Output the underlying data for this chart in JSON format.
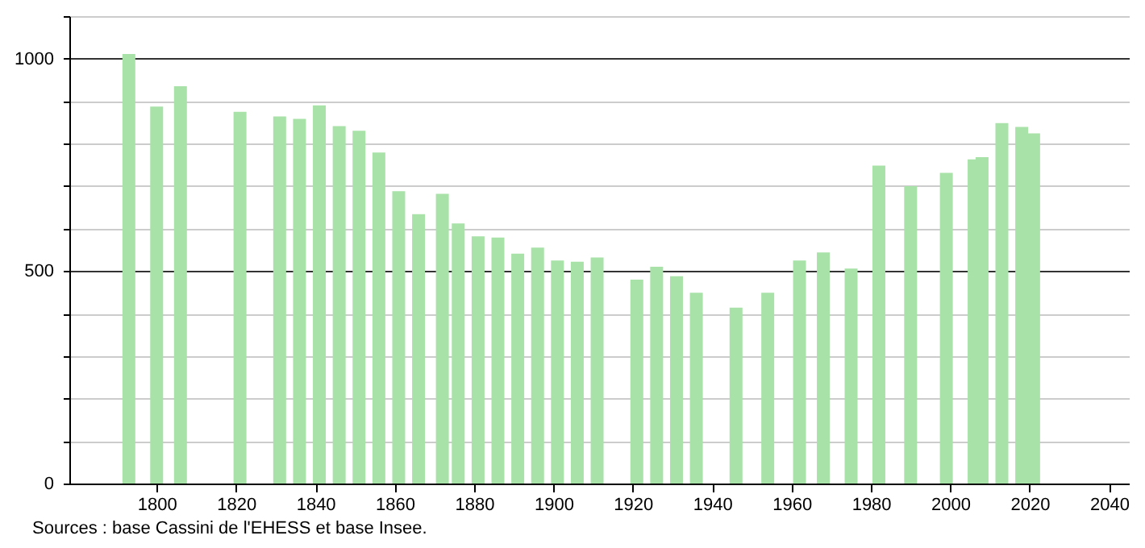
{
  "chart_data": {
    "type": "bar",
    "x": [
      1793,
      1800,
      1806,
      1821,
      1831,
      1836,
      1841,
      1846,
      1851,
      1856,
      1861,
      1866,
      1872,
      1876,
      1881,
      1886,
      1891,
      1896,
      1901,
      1906,
      1911,
      1921,
      1926,
      1931,
      1936,
      1946,
      1954,
      1962,
      1968,
      1975,
      1982,
      1990,
      1999,
      2006,
      2008,
      2013,
      2018,
      2021
    ],
    "values": [
      1011,
      887,
      935,
      875,
      864,
      858,
      890,
      841,
      830,
      779,
      688,
      634,
      682,
      612,
      582,
      579,
      541,
      555,
      525,
      522,
      532,
      480,
      510,
      488,
      449,
      414,
      449,
      525,
      544,
      506,
      748,
      700,
      731,
      763,
      768,
      848,
      839,
      824
    ],
    "color": "#a8e2a8",
    "xlim": [
      1778,
      2045
    ],
    "xticks": [
      1800,
      1820,
      1840,
      1860,
      1880,
      1900,
      1920,
      1940,
      1960,
      1980,
      2000,
      2020,
      2040
    ],
    "ylim": [
      0,
      1100
    ],
    "yticks": [
      0,
      {
        "value": 100,
        "label": null
      },
      {
        "value": 200,
        "label": null
      },
      {
        "value": 300,
        "label": null
      },
      {
        "value": 400,
        "label": null
      },
      500,
      {
        "value": 600,
        "label": null
      },
      {
        "value": 700,
        "label": null
      },
      {
        "value": 800,
        "label": null
      },
      {
        "value": 900,
        "label": null
      },
      1000,
      {
        "value": 1100,
        "label": null
      }
    ],
    "grid": "y",
    "annotations": [
      "Sources : base Cassini de l'EHESS et base Insee."
    ]
  }
}
